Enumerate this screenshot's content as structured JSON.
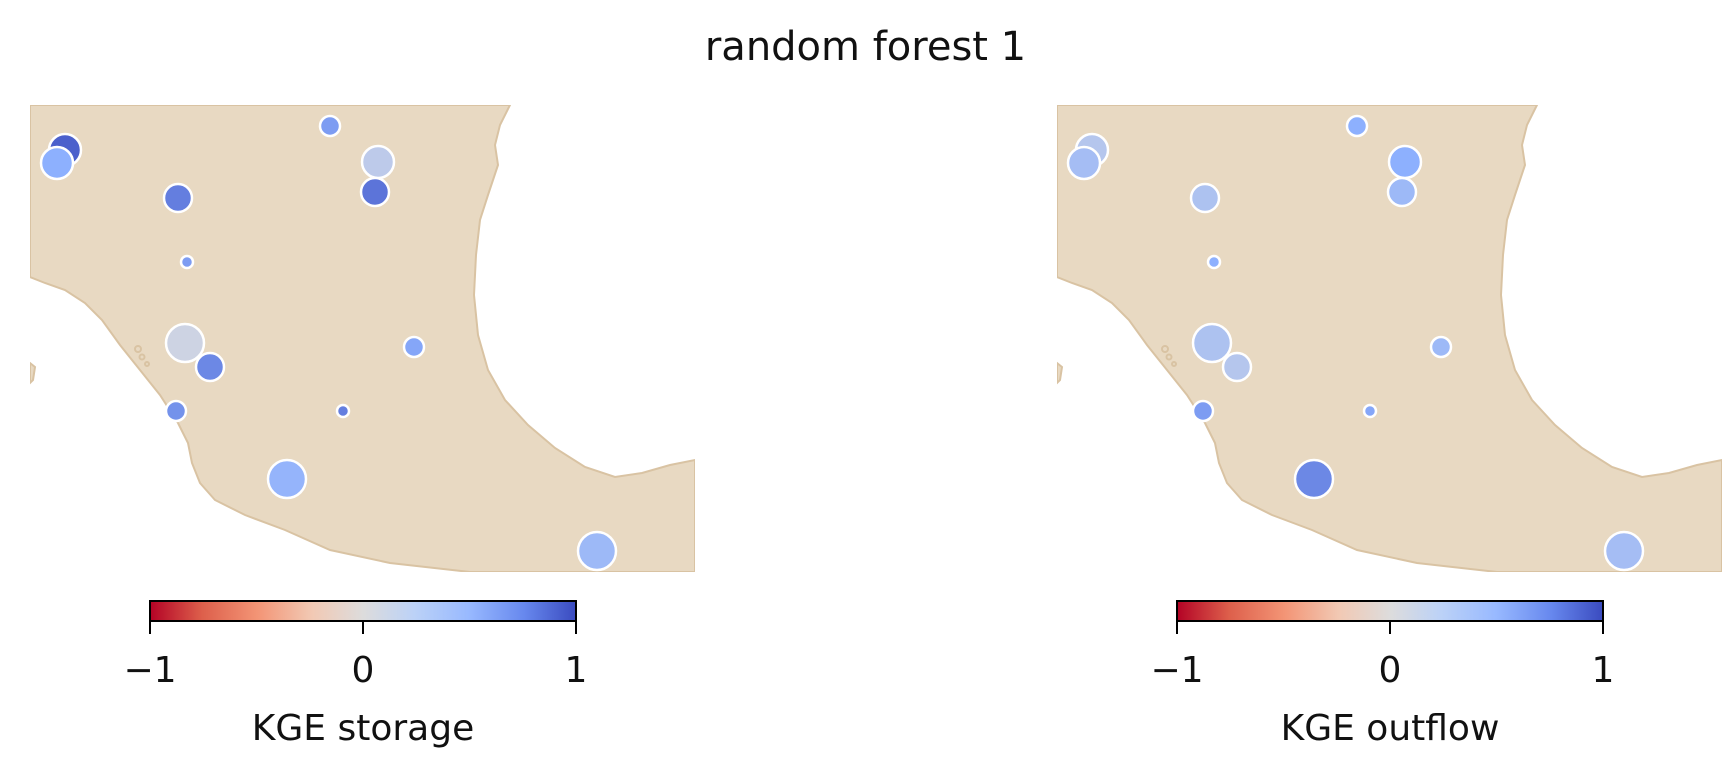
{
  "title": "random forest 1",
  "colors": {
    "land": "#e8d9c2",
    "coast": "#d9c3a3",
    "marker_edge": "#ffffff",
    "colormap": "coolwarm"
  },
  "colorbar_ticks": [
    "−1",
    "0",
    "1"
  ],
  "colorbar_range": [
    -1,
    1
  ],
  "panels": [
    {
      "id": "storage",
      "colorbar_label": "KGE storage",
      "stations": [
        {
          "value": 0.9,
          "size": "large"
        },
        {
          "value": 0.5,
          "size": "large"
        },
        {
          "value": 0.6,
          "size": "small"
        },
        {
          "value": 0.2,
          "size": "large"
        },
        {
          "value": 0.75,
          "size": "medium"
        },
        {
          "value": 0.8,
          "size": "medium"
        },
        {
          "value": 0.6,
          "size": "tiny"
        },
        {
          "value": 0.1,
          "size": "xlarge"
        },
        {
          "value": 0.7,
          "size": "medium"
        },
        {
          "value": 0.55,
          "size": "small"
        },
        {
          "value": 0.65,
          "size": "small"
        },
        {
          "value": 0.75,
          "size": "tiny"
        },
        {
          "value": 0.45,
          "size": "xlarge"
        },
        {
          "value": 0.4,
          "size": "xlarge"
        }
      ]
    },
    {
      "id": "outflow",
      "colorbar_label": "KGE outflow",
      "stations": [
        {
          "value": 0.25,
          "size": "large"
        },
        {
          "value": 0.35,
          "size": "large"
        },
        {
          "value": 0.5,
          "size": "small"
        },
        {
          "value": 0.5,
          "size": "large"
        },
        {
          "value": 0.3,
          "size": "medium"
        },
        {
          "value": 0.4,
          "size": "medium"
        },
        {
          "value": 0.5,
          "size": "tiny"
        },
        {
          "value": 0.3,
          "size": "xlarge"
        },
        {
          "value": 0.25,
          "size": "medium"
        },
        {
          "value": 0.4,
          "size": "small"
        },
        {
          "value": 0.6,
          "size": "small"
        },
        {
          "value": 0.55,
          "size": "tiny"
        },
        {
          "value": 0.7,
          "size": "xlarge"
        },
        {
          "value": 0.35,
          "size": "xlarge"
        }
      ]
    }
  ]
}
